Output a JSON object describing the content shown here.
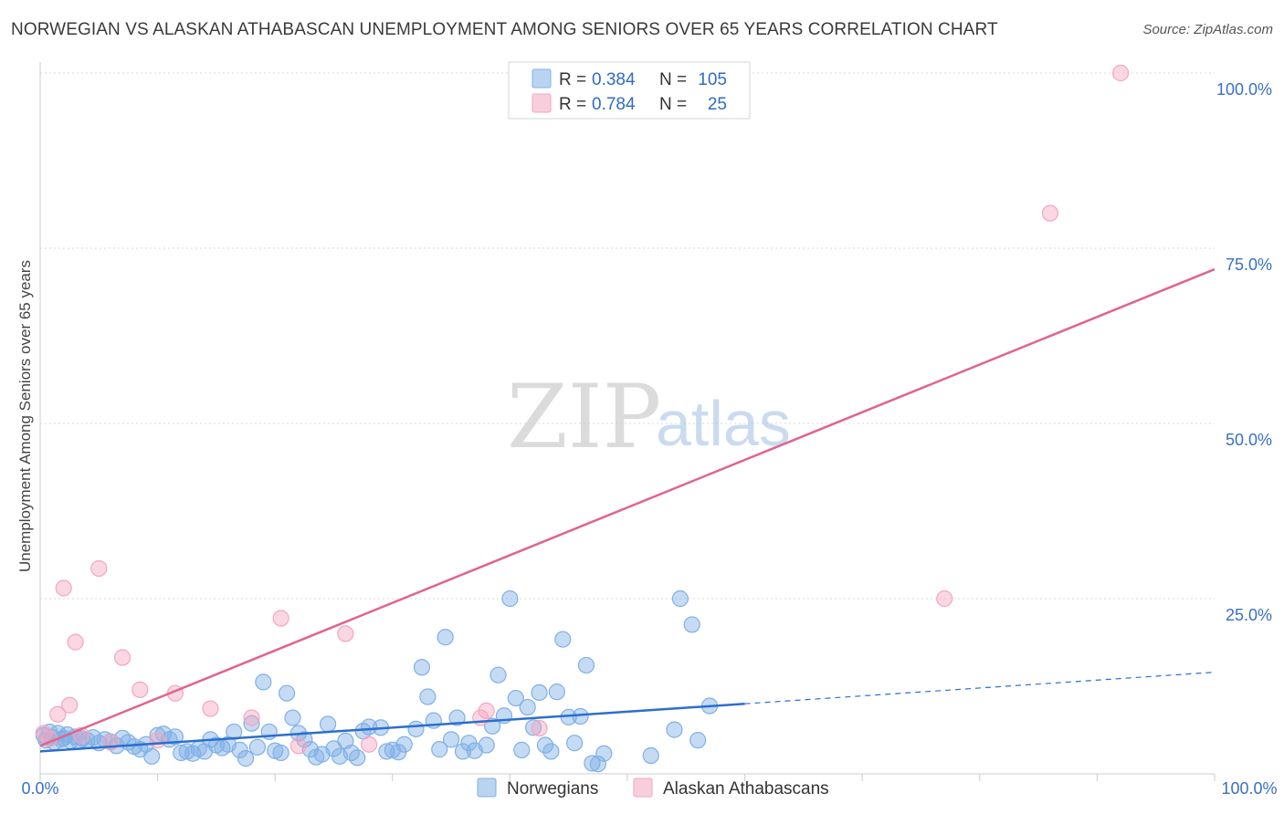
{
  "title": "NORWEGIAN VS ALASKAN ATHABASCAN UNEMPLOYMENT AMONG SENIORS OVER 65 YEARS CORRELATION CHART",
  "source": "Source: ZipAtlas.com",
  "watermark": {
    "zip": "ZIP",
    "atlas": "atlas"
  },
  "chart_data": {
    "type": "scatter",
    "title": "NORWEGIAN VS ALASKAN ATHABASCAN UNEMPLOYMENT AMONG SENIORS OVER 65 YEARS CORRELATION CHART",
    "xlabel": "",
    "ylabel": "Unemployment Among Seniors over 65 years",
    "xlim": [
      0,
      100
    ],
    "ylim": [
      0,
      100
    ],
    "x_tick_labels": {
      "left": "0.0%",
      "right": "100.0%"
    },
    "y_ticks": [
      {
        "value": 100,
        "label": "100.0%"
      },
      {
        "value": 75,
        "label": "75.0%"
      },
      {
        "value": 50,
        "label": "50.0%"
      },
      {
        "value": 25,
        "label": "25.0%"
      }
    ],
    "grid": true,
    "legend": {
      "placement": "top-center",
      "stats": [
        {
          "r_label": "R = ",
          "r_value": "0.384",
          "n_label": "N = ",
          "n_value": "105"
        },
        {
          "r_label": "R = ",
          "r_value": "0.784",
          "n_label": "N = ",
          "n_value": "25"
        }
      ]
    },
    "series": [
      {
        "name": "Norwegians",
        "color": "#7fb0e6",
        "line_color": "#2a6fcf",
        "trend": {
          "x0": 0,
          "y0": 3.2,
          "x1": 60,
          "y1": 10.0,
          "dashed_to_x": 100,
          "dashed_to_y": 14.5
        },
        "points": [
          [
            0.3,
            5.5
          ],
          [
            0.5,
            4.8
          ],
          [
            0.8,
            6.0
          ],
          [
            1.0,
            5.2
          ],
          [
            1.2,
            4.5
          ],
          [
            1.5,
            5.8
          ],
          [
            1.8,
            4.9
          ],
          [
            2.0,
            5.1
          ],
          [
            2.3,
            5.6
          ],
          [
            2.6,
            4.7
          ],
          [
            3.0,
            5.3
          ],
          [
            3.3,
            4.6
          ],
          [
            3.6,
            5.0
          ],
          [
            4.0,
            4.8
          ],
          [
            4.5,
            5.2
          ],
          [
            5.0,
            4.4
          ],
          [
            5.5,
            4.9
          ],
          [
            6.0,
            4.6
          ],
          [
            6.5,
            4.0
          ],
          [
            7.0,
            5.1
          ],
          [
            7.5,
            4.5
          ],
          [
            8.0,
            3.9
          ],
          [
            8.5,
            3.5
          ],
          [
            9.0,
            4.2
          ],
          [
            9.5,
            2.5
          ],
          [
            10.0,
            5.5
          ],
          [
            10.5,
            5.7
          ],
          [
            11.0,
            4.9
          ],
          [
            11.5,
            5.3
          ],
          [
            12.0,
            3.0
          ],
          [
            12.5,
            3.2
          ],
          [
            13.0,
            2.9
          ],
          [
            13.5,
            3.6
          ],
          [
            14.0,
            3.2
          ],
          [
            14.5,
            4.9
          ],
          [
            15.0,
            4.1
          ],
          [
            15.5,
            3.7
          ],
          [
            16.0,
            4.2
          ],
          [
            16.5,
            6.0
          ],
          [
            17.0,
            3.4
          ],
          [
            17.5,
            2.2
          ],
          [
            18.0,
            7.2
          ],
          [
            18.5,
            3.8
          ],
          [
            19.0,
            13.1
          ],
          [
            19.5,
            6.0
          ],
          [
            20.0,
            3.3
          ],
          [
            20.5,
            3.0
          ],
          [
            21.0,
            11.5
          ],
          [
            21.5,
            8.0
          ],
          [
            22.0,
            5.8
          ],
          [
            22.5,
            4.9
          ],
          [
            23.0,
            3.5
          ],
          [
            23.5,
            2.4
          ],
          [
            24.0,
            2.8
          ],
          [
            24.5,
            7.1
          ],
          [
            25.0,
            3.6
          ],
          [
            25.5,
            2.5
          ],
          [
            26.0,
            4.7
          ],
          [
            26.5,
            3.0
          ],
          [
            27.0,
            2.3
          ],
          [
            27.5,
            6.1
          ],
          [
            28.0,
            6.7
          ],
          [
            29.0,
            6.6
          ],
          [
            29.5,
            3.2
          ],
          [
            30.0,
            3.4
          ],
          [
            30.5,
            3.1
          ],
          [
            31.0,
            4.2
          ],
          [
            32.0,
            6.4
          ],
          [
            32.5,
            15.2
          ],
          [
            33.0,
            11.0
          ],
          [
            33.5,
            7.6
          ],
          [
            34.0,
            3.5
          ],
          [
            34.5,
            19.5
          ],
          [
            35.0,
            4.9
          ],
          [
            35.5,
            8.0
          ],
          [
            36.0,
            3.2
          ],
          [
            36.5,
            4.4
          ],
          [
            37.0,
            3.3
          ],
          [
            38.0,
            4.1
          ],
          [
            38.5,
            6.8
          ],
          [
            39.0,
            14.1
          ],
          [
            39.5,
            8.3
          ],
          [
            40.0,
            25.0
          ],
          [
            40.5,
            10.8
          ],
          [
            41.0,
            3.4
          ],
          [
            41.5,
            9.5
          ],
          [
            42.0,
            6.6
          ],
          [
            42.5,
            11.6
          ],
          [
            43.0,
            4.1
          ],
          [
            43.5,
            3.2
          ],
          [
            44.0,
            11.7
          ],
          [
            44.5,
            19.2
          ],
          [
            45.0,
            8.1
          ],
          [
            45.5,
            4.4
          ],
          [
            46.0,
            8.2
          ],
          [
            46.5,
            15.5
          ],
          [
            47.0,
            1.5
          ],
          [
            47.5,
            1.4
          ],
          [
            48.0,
            2.9
          ],
          [
            52.0,
            2.6
          ],
          [
            54.0,
            6.3
          ],
          [
            54.5,
            25.0
          ],
          [
            55.5,
            21.3
          ],
          [
            56.0,
            4.8
          ],
          [
            57.0,
            9.7
          ]
        ]
      },
      {
        "name": "Alaskan Athabascans",
        "color": "#f4a6bf",
        "line_color": "#e0648e",
        "trend": {
          "x0": 0,
          "y0": 4.0,
          "x1": 100,
          "y1": 72.0
        },
        "points": [
          [
            0.3,
            5.8
          ],
          [
            0.8,
            5.0
          ],
          [
            1.5,
            8.5
          ],
          [
            2.0,
            26.5
          ],
          [
            2.5,
            9.8
          ],
          [
            3.0,
            18.8
          ],
          [
            3.5,
            5.5
          ],
          [
            5.0,
            29.3
          ],
          [
            6.0,
            4.5
          ],
          [
            7.0,
            16.6
          ],
          [
            8.5,
            12.0
          ],
          [
            10.0,
            4.8
          ],
          [
            11.5,
            11.5
          ],
          [
            14.5,
            9.3
          ],
          [
            18.0,
            8.0
          ],
          [
            20.5,
            22.2
          ],
          [
            22.0,
            4.0
          ],
          [
            26.0,
            20.0
          ],
          [
            28.0,
            4.2
          ],
          [
            37.5,
            8.0
          ],
          [
            38.0,
            9.0
          ],
          [
            42.5,
            6.5
          ],
          [
            77.0,
            25.0
          ],
          [
            86.0,
            80.0
          ],
          [
            92.0,
            100.0
          ]
        ]
      }
    ]
  }
}
